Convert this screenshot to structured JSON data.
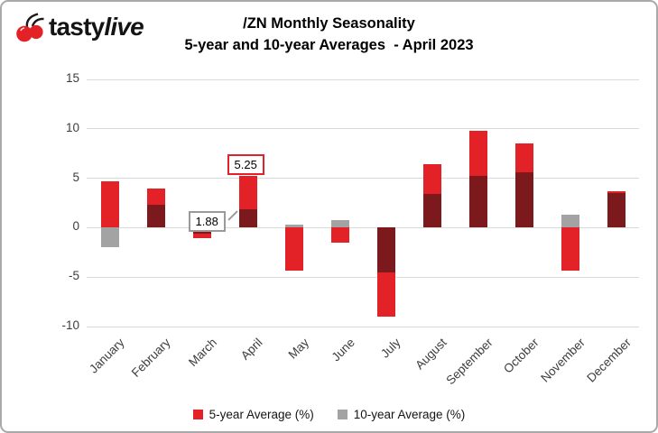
{
  "header": {
    "logo_tasty": "tasty",
    "logo_live": "live"
  },
  "chart_data": {
    "type": "bar",
    "title": "/ZN Monthly Seasonality",
    "subtitle": "5-year and 10-year Averages  - April 2023",
    "categories": [
      "January",
      "February",
      "March",
      "April",
      "May",
      "June",
      "July",
      "August",
      "September",
      "October",
      "November",
      "December"
    ],
    "series": [
      {
        "name": "5-year Average (%)",
        "color": "#e32227",
        "values": [
          4.7,
          4.0,
          -1.1,
          5.25,
          -4.3,
          -1.5,
          -9.0,
          6.4,
          9.8,
          8.5,
          -4.3,
          3.7
        ]
      },
      {
        "name": "10-year Average (%)",
        "color": "#a3a3a3",
        "values": [
          -2.0,
          2.3,
          -0.6,
          1.88,
          0.3,
          0.8,
          -4.5,
          3.4,
          5.2,
          5.6,
          1.3,
          3.5
        ]
      }
    ],
    "overlap_color": "#7c191d",
    "ylim": [
      -10,
      15
    ],
    "yticks": [
      15,
      10,
      5,
      0,
      -5,
      -10
    ],
    "grid": true,
    "legend_position": "bottom",
    "annotations": [
      {
        "text": "5.25",
        "month": "April",
        "value": 5.25,
        "series": "5-year Average (%)",
        "border_color": "#e32227",
        "placement": "above-bar"
      },
      {
        "text": "1.88",
        "month": "April",
        "value": 1.88,
        "series": "10-year Average (%)",
        "border_color": "#9a9a9a",
        "placement": "left-of-bar"
      }
    ]
  },
  "legend": {
    "items": [
      {
        "label": "5-year Average (%)",
        "color": "#e32227"
      },
      {
        "label": "10-year Average (%)",
        "color": "#a3a3a3"
      }
    ]
  }
}
